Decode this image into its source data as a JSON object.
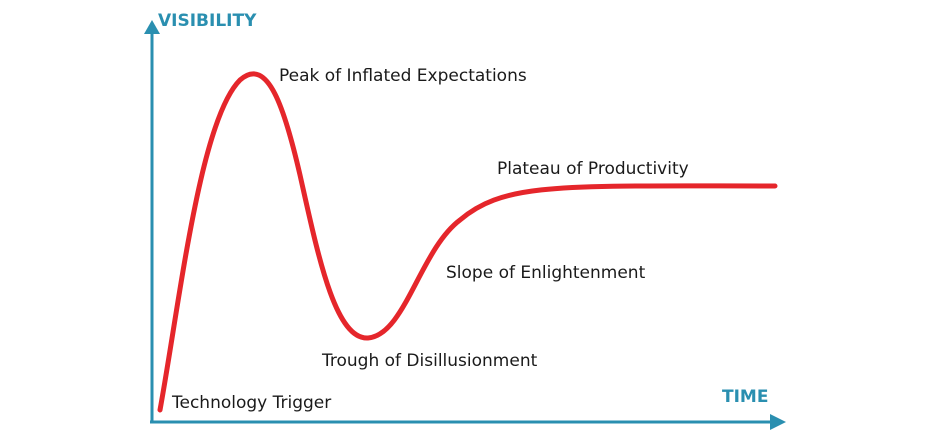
{
  "axes": {
    "y_label": "VISIBILITY",
    "x_label": "TIME"
  },
  "phases": {
    "technology_trigger": "Technology Trigger",
    "peak": "Peak of Inflated Expectations",
    "trough": "Trough of Disillusionment",
    "slope": "Slope of Enlightenment",
    "plateau": "Plateau of Productivity"
  },
  "colors": {
    "axis": "#2a8fb0",
    "curve": "#e5262b",
    "text": "#1a1a1a"
  }
}
